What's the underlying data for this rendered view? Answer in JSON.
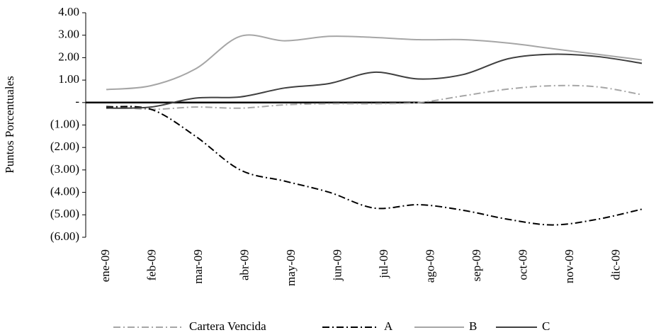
{
  "chart_data": {
    "type": "line",
    "y_label": "Puntos Porcentuales",
    "categories": [
      "ene-09",
      "feb-09",
      "mar-09",
      "abr-09",
      "may-09",
      "jun-09",
      "jul-09",
      "ago-09",
      "sep-09",
      "oct-09",
      "nov-09",
      "dic-09",
      null
    ],
    "series": [
      {
        "name": "Cartera Vencida",
        "color": "#a6a6a6",
        "dash": "dashdot",
        "values": [
          -0.15,
          -0.3,
          -0.2,
          -0.25,
          -0.1,
          -0.05,
          -0.05,
          0.0,
          0.3,
          0.6,
          0.75,
          0.7,
          0.35
        ]
      },
      {
        "name": "A",
        "color": "#000000",
        "dash": "dashdot",
        "values": [
          -0.2,
          -0.3,
          -1.5,
          -3.0,
          -3.5,
          -4.0,
          -4.7,
          -4.55,
          -4.8,
          -5.2,
          -5.45,
          -5.2,
          -4.75
        ]
      },
      {
        "name": "B",
        "color": "#a6a6a6",
        "dash": "solid",
        "values": [
          0.58,
          0.75,
          1.5,
          2.95,
          2.75,
          2.95,
          2.9,
          2.8,
          2.8,
          2.65,
          2.4,
          2.15,
          1.9
        ]
      },
      {
        "name": "C",
        "color": "#404040",
        "dash": "solid",
        "values": [
          -0.25,
          -0.2,
          0.2,
          0.25,
          0.65,
          0.85,
          1.35,
          1.05,
          1.25,
          1.95,
          2.15,
          2.05,
          1.75
        ]
      }
    ],
    "ylim": [
      -6,
      4
    ],
    "yticks": [
      {
        "value": -6,
        "label": "(6.00)"
      },
      {
        "value": -5,
        "label": "(5.00)"
      },
      {
        "value": -4,
        "label": "(4.00)"
      },
      {
        "value": -3,
        "label": "(3.00)"
      },
      {
        "value": -2,
        "label": "(2.00)"
      },
      {
        "value": -1,
        "label": "(1.00)"
      },
      {
        "value": 0,
        "label": "-"
      },
      {
        "value": 1,
        "label": "1.00"
      },
      {
        "value": 2,
        "label": "2.00"
      },
      {
        "value": 3,
        "label": "3.00"
      },
      {
        "value": 4,
        "label": "4.00"
      }
    ],
    "grid": false,
    "smooth": true,
    "legend": "bottom"
  }
}
